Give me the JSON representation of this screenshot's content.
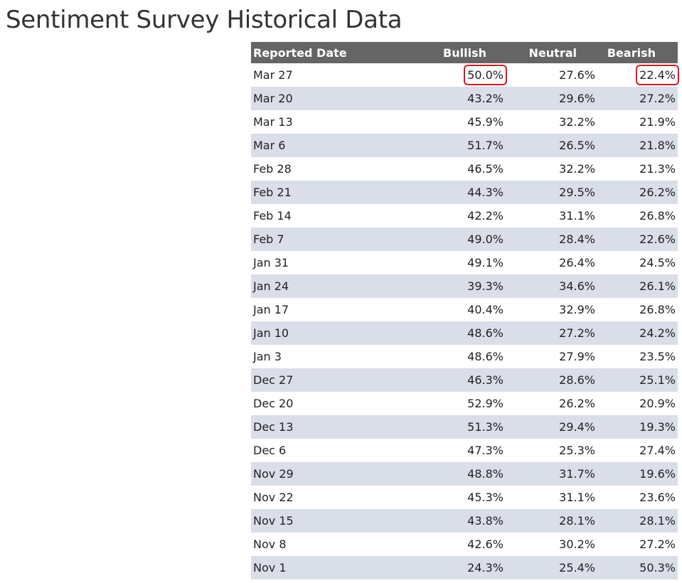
{
  "page": {
    "title": "Sentiment Survey Historical Data"
  },
  "table": {
    "headers": [
      "Reported Date",
      "Bullish",
      "Neutral",
      "Bearish"
    ],
    "highlight_color": "#e0141e",
    "highlighted_cells": [
      {
        "row": 0,
        "column": "Bullish"
      },
      {
        "row": 0,
        "column": "Bearish"
      }
    ],
    "rows": [
      {
        "date": "Mar 27",
        "bullish": "50.0%",
        "neutral": "27.6%",
        "bearish": "22.4%"
      },
      {
        "date": "Mar 20",
        "bullish": "43.2%",
        "neutral": "29.6%",
        "bearish": "27.2%"
      },
      {
        "date": "Mar 13",
        "bullish": "45.9%",
        "neutral": "32.2%",
        "bearish": "21.9%"
      },
      {
        "date": "Mar 6",
        "bullish": "51.7%",
        "neutral": "26.5%",
        "bearish": "21.8%"
      },
      {
        "date": "Feb 28",
        "bullish": "46.5%",
        "neutral": "32.2%",
        "bearish": "21.3%"
      },
      {
        "date": "Feb 21",
        "bullish": "44.3%",
        "neutral": "29.5%",
        "bearish": "26.2%"
      },
      {
        "date": "Feb 14",
        "bullish": "42.2%",
        "neutral": "31.1%",
        "bearish": "26.8%"
      },
      {
        "date": "Feb 7",
        "bullish": "49.0%",
        "neutral": "28.4%",
        "bearish": "22.6%"
      },
      {
        "date": "Jan 31",
        "bullish": "49.1%",
        "neutral": "26.4%",
        "bearish": "24.5%"
      },
      {
        "date": "Jan 24",
        "bullish": "39.3%",
        "neutral": "34.6%",
        "bearish": "26.1%"
      },
      {
        "date": "Jan 17",
        "bullish": "40.4%",
        "neutral": "32.9%",
        "bearish": "26.8%"
      },
      {
        "date": "Jan 10",
        "bullish": "48.6%",
        "neutral": "27.2%",
        "bearish": "24.2%"
      },
      {
        "date": "Jan 3",
        "bullish": "48.6%",
        "neutral": "27.9%",
        "bearish": "23.5%"
      },
      {
        "date": "Dec 27",
        "bullish": "46.3%",
        "neutral": "28.6%",
        "bearish": "25.1%"
      },
      {
        "date": "Dec 20",
        "bullish": "52.9%",
        "neutral": "26.2%",
        "bearish": "20.9%"
      },
      {
        "date": "Dec 13",
        "bullish": "51.3%",
        "neutral": "29.4%",
        "bearish": "19.3%"
      },
      {
        "date": "Dec 6",
        "bullish": "47.3%",
        "neutral": "25.3%",
        "bearish": "27.4%"
      },
      {
        "date": "Nov 29",
        "bullish": "48.8%",
        "neutral": "31.7%",
        "bearish": "19.6%"
      },
      {
        "date": "Nov 22",
        "bullish": "45.3%",
        "neutral": "31.1%",
        "bearish": "23.6%"
      },
      {
        "date": "Nov 15",
        "bullish": "43.8%",
        "neutral": "28.1%",
        "bearish": "28.1%"
      },
      {
        "date": "Nov 8",
        "bullish": "42.6%",
        "neutral": "30.2%",
        "bearish": "27.2%"
      },
      {
        "date": "Nov 1",
        "bullish": "24.3%",
        "neutral": "25.4%",
        "bearish": "50.3%"
      }
    ]
  }
}
